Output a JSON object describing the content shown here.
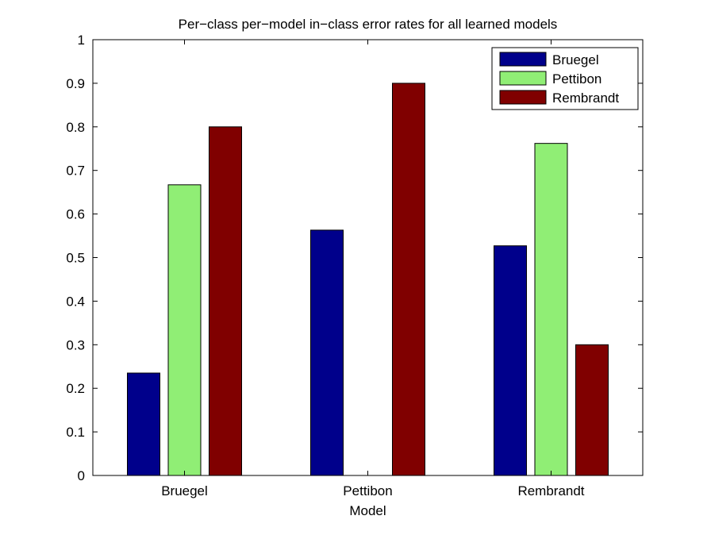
{
  "chart_data": {
    "type": "bar",
    "title": "Per−class per−model in−class error rates for all learned models",
    "xlabel": "Model",
    "ylabel": "",
    "categories": [
      "Bruegel",
      "Pettibon",
      "Rembrandt"
    ],
    "series": [
      {
        "name": "Bruegel",
        "color": "#00008B",
        "values": [
          0.235,
          0.563,
          0.527
        ]
      },
      {
        "name": "Pettibon",
        "color": "#90EE75",
        "values": [
          0.667,
          0.0,
          0.762
        ]
      },
      {
        "name": "Rembrandt",
        "color": "#800000",
        "values": [
          0.8,
          0.9,
          0.3
        ]
      }
    ],
    "ylim": [
      0,
      1
    ],
    "yticks": [
      "0",
      "0.1",
      "0.2",
      "0.3",
      "0.4",
      "0.5",
      "0.6",
      "0.7",
      "0.8",
      "0.9",
      "1"
    ],
    "grid": false,
    "legend_position": "top-right"
  }
}
